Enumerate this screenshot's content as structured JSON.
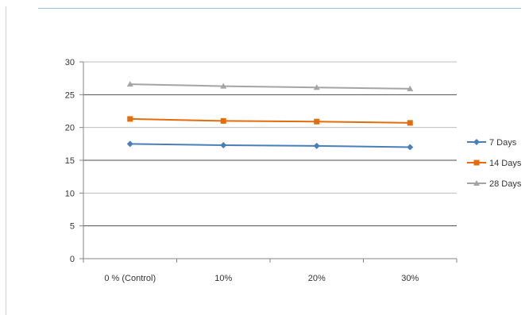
{
  "chart_data": {
    "type": "line",
    "categories": [
      "0 % (Control)",
      "10%",
      "20%",
      "30%"
    ],
    "series": [
      {
        "name": "7 Days",
        "values": [
          17.5,
          17.3,
          17.2,
          17.0
        ],
        "color": "#4a7ebb",
        "marker": "diamond"
      },
      {
        "name": "14 Days",
        "values": [
          21.3,
          21.0,
          20.9,
          20.7
        ],
        "color": "#e46c0a",
        "marker": "square"
      },
      {
        "name": "28 Days",
        "values": [
          26.6,
          26.3,
          26.1,
          25.9
        ],
        "color": "#a5a5a5",
        "marker": "triangle"
      }
    ],
    "yticks": [
      0,
      5,
      10,
      15,
      20,
      25,
      30
    ],
    "ylim": [
      0,
      30
    ],
    "grid": true,
    "legend_position": "right"
  }
}
